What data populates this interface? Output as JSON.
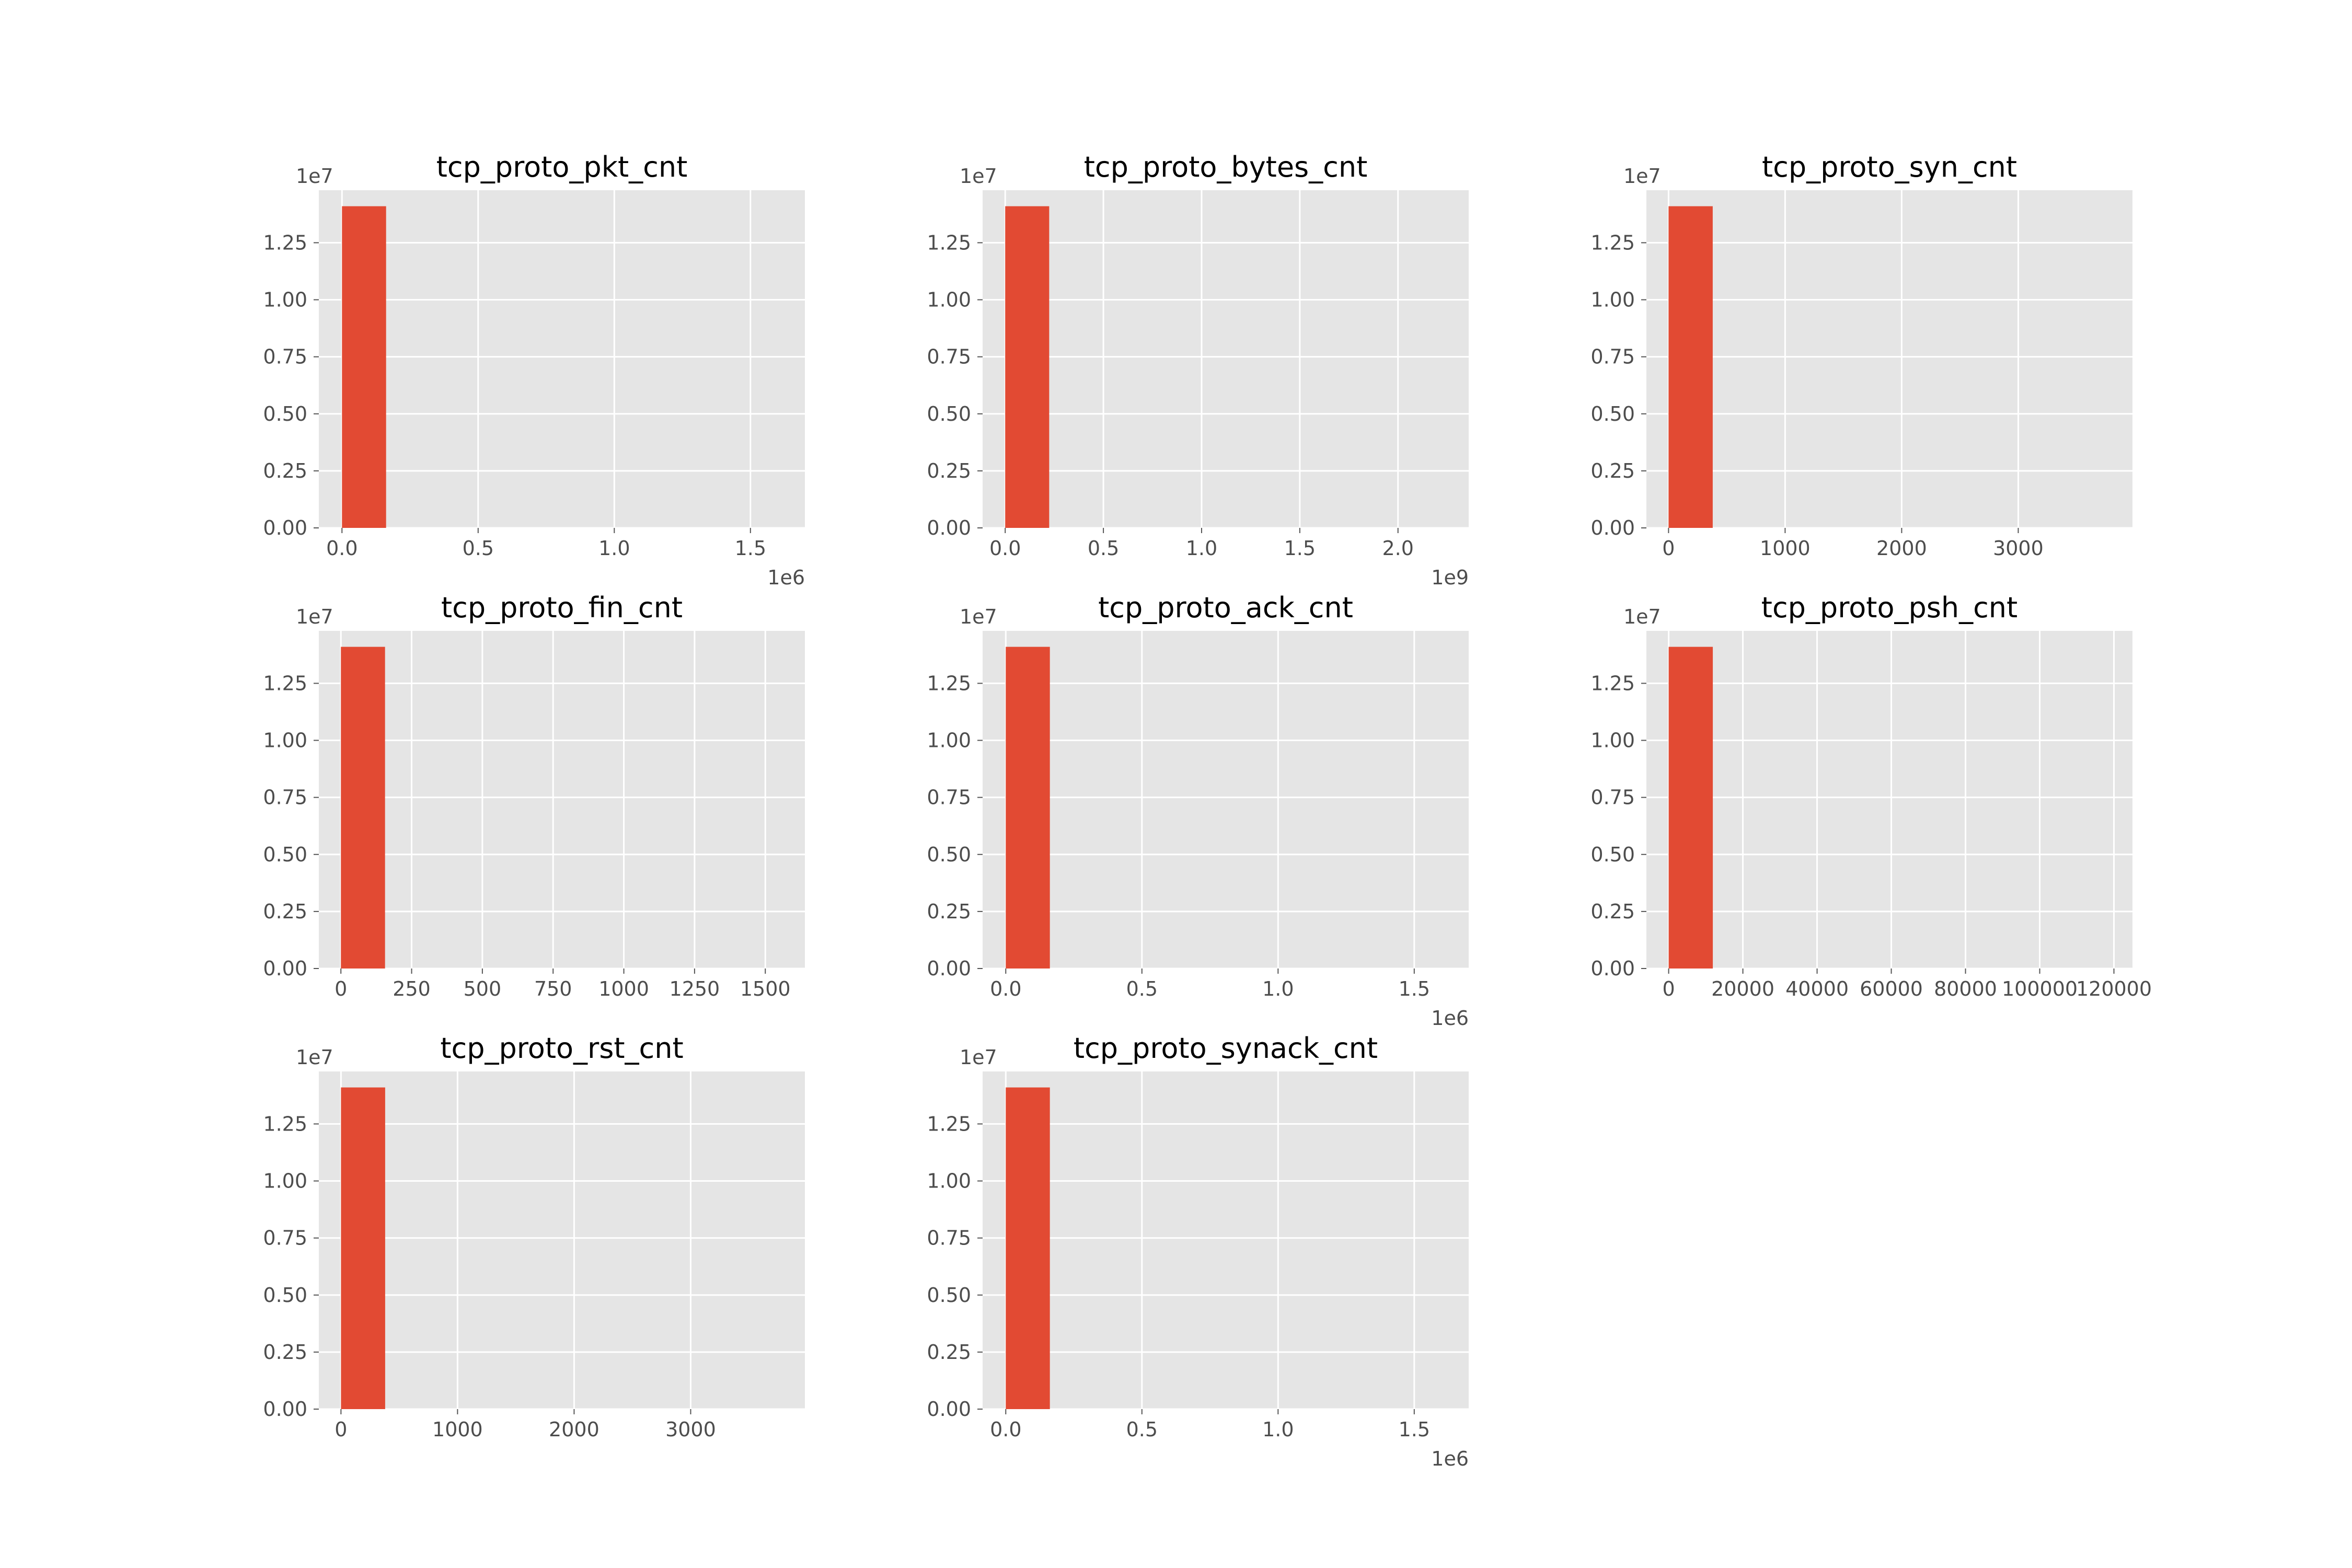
{
  "figure": {
    "style": "ggplot",
    "background": "#ffffff",
    "panel_color": "#e5e5e5",
    "grid_color": "#ffffff",
    "bar_color": "#e24a33"
  },
  "chart_data": [
    {
      "type": "bar",
      "title": "tcp_proto_pkt_cnt",
      "x_ticks": [
        0,
        0.5,
        1.0,
        1.5
      ],
      "x_tick_labels": [
        "0.0",
        "0.5",
        "1.0",
        "1.5"
      ],
      "x_offset_label": "1e6",
      "xlim": [
        -0.085,
        1.7
      ],
      "y_ticks": [
        0,
        0.25,
        0.5,
        0.75,
        1.0,
        1.25
      ],
      "y_tick_labels": [
        "0.00",
        "0.25",
        "0.50",
        "0.75",
        "1.00",
        "1.25"
      ],
      "y_offset_label": "1e7",
      "ylim": [
        0,
        1.48
      ],
      "bins": [
        0,
        0.162,
        0.324,
        0.486,
        0.648,
        0.81,
        0.972,
        1.134,
        1.296,
        1.458,
        1.62
      ],
      "counts": [
        1.41,
        0,
        0,
        0,
        0,
        0,
        0,
        0,
        0,
        0
      ]
    },
    {
      "type": "bar",
      "title": "tcp_proto_bytes_cnt",
      "x_ticks": [
        0,
        0.5,
        1.0,
        1.5,
        2.0
      ],
      "x_tick_labels": [
        "0.0",
        "0.5",
        "1.0",
        "1.5",
        "2.0"
      ],
      "x_offset_label": "1e9",
      "xlim": [
        -0.115,
        2.36
      ],
      "y_ticks": [
        0,
        0.25,
        0.5,
        0.75,
        1.0,
        1.25
      ],
      "y_tick_labels": [
        "0.00",
        "0.25",
        "0.50",
        "0.75",
        "1.00",
        "1.25"
      ],
      "y_offset_label": "1e7",
      "ylim": [
        0,
        1.48
      ],
      "bins": [
        0,
        0.224,
        0.448,
        0.672,
        0.896,
        1.12,
        1.344,
        1.568,
        1.792,
        2.016,
        2.24
      ],
      "counts": [
        1.41,
        0,
        0,
        0,
        0,
        0,
        0,
        0,
        0,
        0
      ]
    },
    {
      "type": "bar",
      "title": "tcp_proto_syn_cnt",
      "x_ticks": [
        0,
        1000,
        2000,
        3000
      ],
      "x_tick_labels": [
        "0",
        "1000",
        "2000",
        "3000"
      ],
      "x_offset_label": "",
      "xlim": [
        -190,
        3980
      ],
      "y_ticks": [
        0,
        0.25,
        0.5,
        0.75,
        1.0,
        1.25
      ],
      "y_tick_labels": [
        "0.00",
        "0.25",
        "0.50",
        "0.75",
        "1.00",
        "1.25"
      ],
      "y_offset_label": "1e7",
      "ylim": [
        0,
        1.48
      ],
      "bins": [
        0,
        379,
        758,
        1137,
        1516,
        1895,
        2274,
        2653,
        3032,
        3411,
        3790
      ],
      "counts": [
        1.41,
        0,
        0,
        0,
        0,
        0,
        0,
        0,
        0,
        0
      ]
    },
    {
      "type": "bar",
      "title": "tcp_proto_fin_cnt",
      "x_ticks": [
        0,
        250,
        500,
        750,
        1000,
        1250,
        1500
      ],
      "x_tick_labels": [
        "0",
        "250",
        "500",
        "750",
        "1000",
        "1250",
        "1500"
      ],
      "x_offset_label": "",
      "xlim": [
        -78,
        1640
      ],
      "y_ticks": [
        0,
        0.25,
        0.5,
        0.75,
        1.0,
        1.25
      ],
      "y_tick_labels": [
        "0.00",
        "0.25",
        "0.50",
        "0.75",
        "1.00",
        "1.25"
      ],
      "y_offset_label": "1e7",
      "ylim": [
        0,
        1.48
      ],
      "bins": [
        0,
        156,
        312,
        468,
        624,
        780,
        936,
        1092,
        1248,
        1404,
        1560
      ],
      "counts": [
        1.41,
        0,
        0,
        0,
        0,
        0,
        0,
        0,
        0,
        0
      ]
    },
    {
      "type": "bar",
      "title": "tcp_proto_ack_cnt",
      "x_ticks": [
        0,
        0.5,
        1.0,
        1.5
      ],
      "x_tick_labels": [
        "0.0",
        "0.5",
        "1.0",
        "1.5"
      ],
      "x_offset_label": "1e6",
      "xlim": [
        -0.085,
        1.7
      ],
      "y_ticks": [
        0,
        0.25,
        0.5,
        0.75,
        1.0,
        1.25
      ],
      "y_tick_labels": [
        "0.00",
        "0.25",
        "0.50",
        "0.75",
        "1.00",
        "1.25"
      ],
      "y_offset_label": "1e7",
      "ylim": [
        0,
        1.48
      ],
      "bins": [
        0,
        0.162,
        0.324,
        0.486,
        0.648,
        0.81,
        0.972,
        1.134,
        1.296,
        1.458,
        1.62
      ],
      "counts": [
        1.41,
        0,
        0,
        0,
        0,
        0,
        0,
        0,
        0,
        0
      ]
    },
    {
      "type": "bar",
      "title": "tcp_proto_psh_cnt",
      "x_ticks": [
        0,
        20000,
        40000,
        60000,
        80000,
        100000,
        120000
      ],
      "x_tick_labels": [
        "0",
        "20000",
        "40000",
        "60000",
        "80000",
        "100000",
        "120000"
      ],
      "x_offset_label": "",
      "xlim": [
        -6000,
        125000
      ],
      "y_ticks": [
        0,
        0.25,
        0.5,
        0.75,
        1.0,
        1.25
      ],
      "y_tick_labels": [
        "0.00",
        "0.25",
        "0.50",
        "0.75",
        "1.00",
        "1.25"
      ],
      "y_offset_label": "1e7",
      "ylim": [
        0,
        1.48
      ],
      "bins": [
        0,
        11900,
        23800,
        35700,
        47600,
        59500,
        71400,
        83300,
        95200,
        107100,
        119000
      ],
      "counts": [
        1.41,
        0,
        0,
        0,
        0,
        0,
        0,
        0,
        0,
        0
      ]
    },
    {
      "type": "bar",
      "title": "tcp_proto_rst_cnt",
      "x_ticks": [
        0,
        1000,
        2000,
        3000
      ],
      "x_tick_labels": [
        "0",
        "1000",
        "2000",
        "3000"
      ],
      "x_offset_label": "",
      "xlim": [
        -190,
        3980
      ],
      "y_ticks": [
        0,
        0.25,
        0.5,
        0.75,
        1.0,
        1.25
      ],
      "y_tick_labels": [
        "0.00",
        "0.25",
        "0.50",
        "0.75",
        "1.00",
        "1.25"
      ],
      "y_offset_label": "1e7",
      "ylim": [
        0,
        1.48
      ],
      "bins": [
        0,
        379,
        758,
        1137,
        1516,
        1895,
        2274,
        2653,
        3032,
        3411,
        3790
      ],
      "counts": [
        1.41,
        0,
        0,
        0,
        0,
        0,
        0,
        0,
        0,
        0
      ]
    },
    {
      "type": "bar",
      "title": "tcp_proto_synack_cnt",
      "x_ticks": [
        0,
        0.5,
        1.0,
        1.5
      ],
      "x_tick_labels": [
        "0.0",
        "0.5",
        "1.0",
        "1.5"
      ],
      "x_offset_label": "1e6",
      "xlim": [
        -0.085,
        1.7
      ],
      "y_ticks": [
        0,
        0.25,
        0.5,
        0.75,
        1.0,
        1.25
      ],
      "y_tick_labels": [
        "0.00",
        "0.25",
        "0.50",
        "0.75",
        "1.00",
        "1.25"
      ],
      "y_offset_label": "1e7",
      "ylim": [
        0,
        1.48
      ],
      "bins": [
        0,
        0.162,
        0.324,
        0.486,
        0.648,
        0.81,
        0.972,
        1.134,
        1.296,
        1.458,
        1.62
      ],
      "counts": [
        1.41,
        0,
        0,
        0,
        0,
        0,
        0,
        0,
        0,
        0
      ]
    }
  ]
}
